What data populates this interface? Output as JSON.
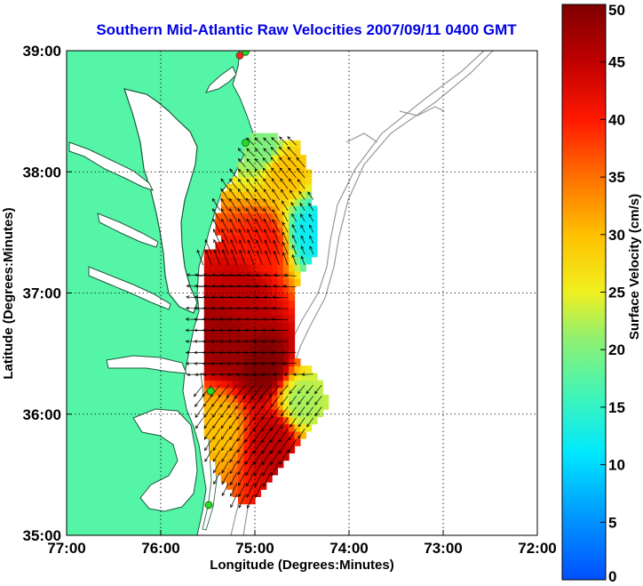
{
  "title": "Southern Mid-Atlantic Raw Velocities 2007/09/11 0400 GMT",
  "colors": {
    "land": "#55f5a8",
    "water": "#ffffff",
    "coast": "#1a5a3a",
    "bathy": "#999999",
    "station": "#22dd22",
    "station_alt": "#ff2222",
    "arrow": "#000000"
  },
  "map": {
    "xlabel": "Longitude (Degrees:Minutes)",
    "ylabel": "Latitude (Degrees:Minutes)",
    "lon_range": [
      -77,
      -72
    ],
    "lat_range": [
      35,
      39
    ],
    "lon_ticks": [
      {
        "v": -77,
        "label": "77:00"
      },
      {
        "v": -76,
        "label": "76:00"
      },
      {
        "v": -75,
        "label": "75:00"
      },
      {
        "v": -74,
        "label": "74:00"
      },
      {
        "v": -73,
        "label": "73:00"
      },
      {
        "v": -72,
        "label": "72:00"
      }
    ],
    "lat_ticks": [
      {
        "v": 39,
        "label": "39:00"
      },
      {
        "v": 38,
        "label": "38:00"
      },
      {
        "v": 37,
        "label": "37:00"
      },
      {
        "v": 36,
        "label": "36:00"
      },
      {
        "v": 35,
        "label": "35:00"
      }
    ],
    "grid": "dotted",
    "stations": [
      {
        "lon": -75.1,
        "lat": 38.99,
        "color": "station"
      },
      {
        "lon": -75.16,
        "lat": 38.96,
        "color": "station_alt"
      },
      {
        "lon": -75.1,
        "lat": 38.24,
        "color": "station"
      },
      {
        "lon": -75.47,
        "lat": 36.19,
        "color": "station"
      },
      {
        "lon": -75.49,
        "lat": 35.25,
        "color": "station"
      }
    ]
  },
  "colorbar": {
    "label": "Surface Velocity (cm/s)",
    "range": [
      0,
      50
    ],
    "ticks": [
      {
        "v": 0,
        "label": "0"
      },
      {
        "v": 5,
        "label": "5"
      },
      {
        "v": 10,
        "label": "10"
      },
      {
        "v": 15,
        "label": "15"
      },
      {
        "v": 20,
        "label": "20"
      },
      {
        "v": 25,
        "label": "25"
      },
      {
        "v": 30,
        "label": "30"
      },
      {
        "v": 35,
        "label": "35"
      },
      {
        "v": 40,
        "label": "40"
      },
      {
        "v": 45,
        "label": "45"
      },
      {
        "v": 50,
        "label": "50"
      }
    ]
  },
  "velocity_field": {
    "units": "cm/s",
    "approx_samples": [
      {
        "lon": -74.9,
        "lat": 38.2,
        "speed": 20
      },
      {
        "lon": -74.7,
        "lat": 38.0,
        "speed": 30
      },
      {
        "lon": -74.4,
        "lat": 37.5,
        "speed": 12
      },
      {
        "lon": -74.9,
        "lat": 37.4,
        "speed": 40
      },
      {
        "lon": -75.1,
        "lat": 37.0,
        "speed": 45
      },
      {
        "lon": -75.3,
        "lat": 36.6,
        "speed": 48
      },
      {
        "lon": -74.9,
        "lat": 36.4,
        "speed": 50
      },
      {
        "lon": -74.5,
        "lat": 36.1,
        "speed": 22
      },
      {
        "lon": -74.8,
        "lat": 35.8,
        "speed": 45
      },
      {
        "lon": -75.4,
        "lat": 35.9,
        "speed": 30
      }
    ]
  }
}
